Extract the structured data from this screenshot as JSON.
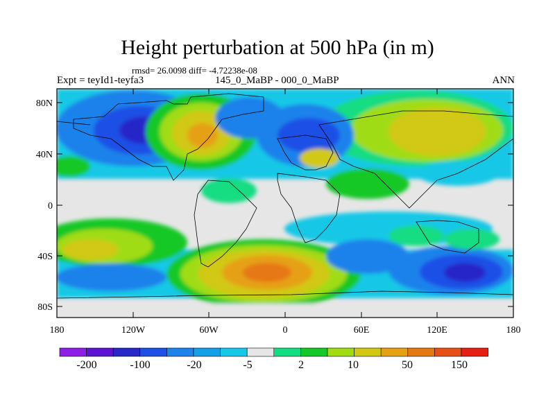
{
  "header": {
    "title": "Height perturbation at 500 hPa (in m)",
    "stats": "rmsd= 26.0098 diff= -4.72238e-08",
    "left_label": "Expt = teyId1-teyfa3",
    "center_label": "145_0_MaBP - 000_0_MaBP",
    "right_label": "ANN"
  },
  "map": {
    "lat_ticks": [
      "80N",
      "40N",
      "0",
      "40S",
      "80S"
    ],
    "lon_ticks": [
      "180",
      "120W",
      "60W",
      "0",
      "60E",
      "120E",
      "180"
    ]
  },
  "colorbar": {
    "labels": [
      "-200",
      "-100",
      "-20",
      "-5",
      "2",
      "10",
      "50",
      "150"
    ],
    "colors": [
      "#8c1ee6",
      "#5a14d2",
      "#2828c8",
      "#1e50e6",
      "#1e82eb",
      "#14a0e6",
      "#14c8e6",
      "#e6e6e6",
      "#14dc82",
      "#14c828",
      "#a0dc14",
      "#d2c814",
      "#e6a014",
      "#e67814",
      "#e65014",
      "#e61e14"
    ]
  }
}
